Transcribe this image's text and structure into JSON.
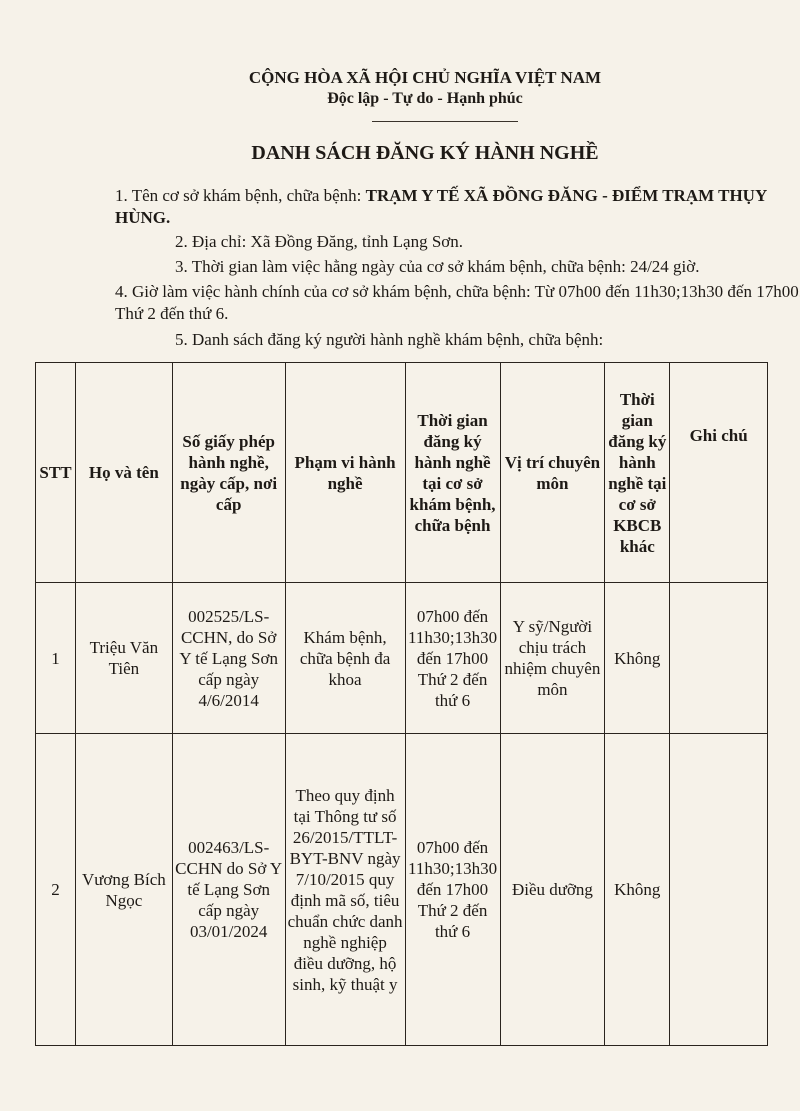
{
  "header": {
    "nation": "CỘNG HÒA XÃ HỘI CHỦ NGHĨA VIỆT NAM",
    "motto": "Độc lập - Tự do - Hạnh phúc"
  },
  "title": "DANH SÁCH ĐĂNG KÝ HÀNH NGHỀ",
  "items": {
    "i1_label": "1. Tên cơ sở khám bệnh, chữa bệnh: ",
    "i1_value": "TRẠM Y TẾ XÃ ĐỒNG ĐĂNG - ĐIỂM TRẠM THỤY HÙNG.",
    "i2": "2. Địa chỉ: Xã Đồng Đăng, tỉnh Lạng Sơn.",
    "i3": "3. Thời gian làm việc hằng ngày của cơ sở khám bệnh, chữa bệnh: 24/24 giờ.",
    "i4": "4. Giờ làm việc hành chính của cơ sở khám bệnh, chữa bệnh: Từ 07h00 đến 11h30;13h30 đến 17h00. Thứ 2 đến thứ 6.",
    "i5": "5. Danh sách đăng ký người hành nghề khám bệnh, chữa bệnh:"
  },
  "table": {
    "headers": [
      "STT",
      "Họ và tên",
      "Số giấy phép hành nghề, ngày cấp, nơi cấp",
      "Phạm vi hành nghề",
      "Thời gian đăng ký hành nghề tại cơ sở khám bệnh, chữa bệnh",
      "Vị trí chuyên môn",
      "Thời gian đăng ký hành nghề tại cơ sở KBCB khác",
      "Ghi chú"
    ],
    "rows": [
      [
        "1",
        "Triệu Văn Tiên",
        "002525/LS-CCHN, do Sở Y tế Lạng Sơn cấp ngày 4/6/2014",
        "Khám bệnh, chữa bệnh đa khoa",
        "07h00 đến 11h30;13h30 đến 17h00 Thứ 2 đến thứ 6",
        "Y sỹ/Người chịu trách nhiệm chuyên môn",
        "Không",
        ""
      ],
      [
        "2",
        "Vương Bích Ngọc",
        "002463/LS-CCHN do Sở Y tế Lạng Sơn cấp ngày 03/01/2024",
        "Theo quy định tại Thông tư số 26/2015/TTLT-BYT-BNV ngày 7/10/2015 quy định mã số, tiêu chuẩn chức danh nghề nghiệp điều dưỡng, hộ sinh, kỹ thuật y",
        "07h00 đến 11h30;13h30 đến 17h00 Thứ 2 đến thứ 6",
        "Điều dưỡng",
        "Không",
        ""
      ]
    ]
  }
}
